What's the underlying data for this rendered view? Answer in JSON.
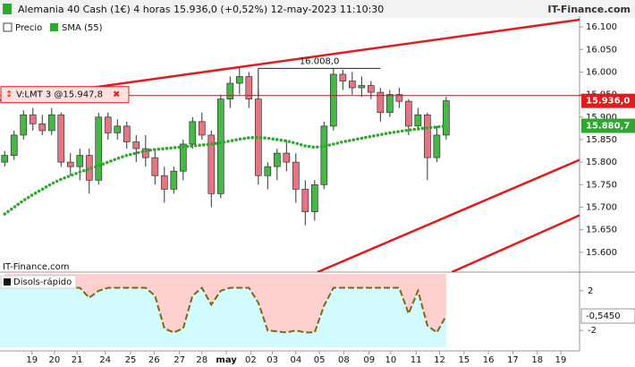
{
  "chart_data": {
    "type": "candlestick",
    "title": "Alemania 40 Cash (1€) 4 horas 15.936,0 (+0,52%) 12-may-2023 11:10:30",
    "brand": "IT-Finance.com",
    "watermark": "IT-Finance.com",
    "legend": [
      "Precio",
      "SMA (55)"
    ],
    "colors": {
      "up": "#45b845",
      "down": "#e57583",
      "sma": "#2ea82e",
      "trend": "#e31b1b",
      "price_box": "#e31b1b",
      "sma_box": "#2ea82e"
    },
    "ylim": [
      15556,
      16124
    ],
    "yticks": [
      {
        "value": 16100,
        "label": "16.100"
      },
      {
        "value": 16050,
        "label": "16.050"
      },
      {
        "value": 16000,
        "label": "16.000"
      },
      {
        "value": 15950,
        "label": "15.950"
      },
      {
        "value": 15900,
        "label": "15.900"
      },
      {
        "value": 15850,
        "label": "15.850"
      },
      {
        "value": 15800,
        "label": "15.800"
      },
      {
        "value": 15750,
        "label": "15.750"
      },
      {
        "value": 15700,
        "label": "15.700"
      },
      {
        "value": 15650,
        "label": "15.650"
      },
      {
        "value": 15600,
        "label": "15.600"
      }
    ],
    "xlim": [
      -0.5,
      61.2
    ],
    "xticks": [
      {
        "value": 2.9,
        "label": "19"
      },
      {
        "value": 5.3,
        "label": "20"
      },
      {
        "value": 7.7,
        "label": "21"
      },
      {
        "value": 10.7,
        "label": "24"
      },
      {
        "value": 13.4,
        "label": "25"
      },
      {
        "value": 15.9,
        "label": "26"
      },
      {
        "value": 18.6,
        "label": "27"
      },
      {
        "value": 21,
        "label": "28"
      },
      {
        "value": 23.6,
        "label": "may"
      },
      {
        "value": 26.2,
        "label": "02"
      },
      {
        "value": 28.5,
        "label": "03"
      },
      {
        "value": 31,
        "label": "04"
      },
      {
        "value": 33.5,
        "label": "05"
      },
      {
        "value": 36.1,
        "label": "08"
      },
      {
        "value": 38.8,
        "label": "09"
      },
      {
        "value": 41.1,
        "label": "10"
      },
      {
        "value": 43.8,
        "label": "11"
      },
      {
        "value": 46.3,
        "label": "12"
      },
      {
        "value": 48.9,
        "label": "15"
      },
      {
        "value": 51.5,
        "label": "16"
      },
      {
        "value": 54.1,
        "label": "17"
      },
      {
        "value": 56.7,
        "label": "18"
      },
      {
        "value": 59.2,
        "label": "19"
      }
    ],
    "ohlc": [
      [
        15800,
        15825,
        15790,
        15815
      ],
      [
        15815,
        15870,
        15805,
        15860
      ],
      [
        15860,
        15915,
        15850,
        15905
      ],
      [
        15905,
        15920,
        15870,
        15885
      ],
      [
        15885,
        15905,
        15860,
        15870
      ],
      [
        15870,
        15920,
        15860,
        15905
      ],
      [
        15905,
        15910,
        15790,
        15800
      ],
      [
        15800,
        15820,
        15770,
        15790
      ],
      [
        15790,
        15830,
        15760,
        15815
      ],
      [
        15815,
        15830,
        15730,
        15760
      ],
      [
        15760,
        15910,
        15750,
        15900
      ],
      [
        15900,
        15910,
        15850,
        15865
      ],
      [
        15865,
        15895,
        15850,
        15880
      ],
      [
        15880,
        15890,
        15830,
        15845
      ],
      [
        15845,
        15860,
        15800,
        15830
      ],
      [
        15830,
        15860,
        15790,
        15810
      ],
      [
        15810,
        15830,
        15750,
        15770
      ],
      [
        15770,
        15790,
        15710,
        15740
      ],
      [
        15740,
        15790,
        15730,
        15780
      ],
      [
        15780,
        15850,
        15760,
        15840
      ],
      [
        15840,
        15900,
        15830,
        15890
      ],
      [
        15890,
        15910,
        15850,
        15860
      ],
      [
        15860,
        15870,
        15700,
        15730
      ],
      [
        15730,
        15950,
        15720,
        15940
      ],
      [
        15940,
        15990,
        15920,
        15975
      ],
      [
        15975,
        16010,
        15950,
        15990
      ],
      [
        15990,
        16000,
        15920,
        15940
      ],
      [
        15940,
        15960,
        15750,
        15770
      ],
      [
        15770,
        15800,
        15740,
        15790
      ],
      [
        15790,
        15830,
        15760,
        15820
      ],
      [
        15820,
        15850,
        15780,
        15800
      ],
      [
        15800,
        15820,
        15710,
        15740
      ],
      [
        15740,
        15760,
        15660,
        15690
      ],
      [
        15690,
        15760,
        15670,
        15750
      ],
      [
        15750,
        15890,
        15740,
        15880
      ],
      [
        15880,
        16008,
        15870,
        15995
      ],
      [
        15995,
        16005,
        15960,
        15980
      ],
      [
        15980,
        16000,
        15950,
        15965
      ],
      [
        15965,
        15990,
        15945,
        15970
      ],
      [
        15970,
        15980,
        15940,
        15955
      ],
      [
        15955,
        15965,
        15890,
        15910
      ],
      [
        15910,
        15960,
        15900,
        15950
      ],
      [
        15950,
        15965,
        15920,
        15935
      ],
      [
        15935,
        15940,
        15860,
        15880
      ],
      [
        15880,
        15920,
        15870,
        15905
      ],
      [
        15905,
        15910,
        15760,
        15810
      ],
      [
        15810,
        15880,
        15800,
        15860
      ],
      [
        15860,
        15945,
        15850,
        15936
      ]
    ],
    "last_price": {
      "value": 15936,
      "label": "15.936,0"
    },
    "sma": {
      "name": "SMA (55)",
      "values": [
        15685,
        15700,
        15715,
        15728,
        15740,
        15752,
        15762,
        15770,
        15778,
        15785,
        15792,
        15800,
        15808,
        15815,
        15820,
        15825,
        15828,
        15830,
        15832,
        15834,
        15836,
        15838,
        15840,
        15843,
        15847,
        15851,
        15854,
        15855,
        15853,
        15850,
        15847,
        15842,
        15836,
        15833,
        15835,
        15840,
        15845,
        15849,
        15853,
        15857,
        15861,
        15865,
        15868,
        15871,
        15874,
        15876,
        15878,
        15880.7
      ],
      "last_label": "15.880,7"
    },
    "order": {
      "label": "V:LMT  3 @15.947,8",
      "value": 15947.8,
      "close": "✖"
    },
    "annotation": {
      "label": "16.008,0",
      "value": 16008,
      "x": [
        27,
        40
      ]
    },
    "trendlines": [
      [
        [
          -0.5,
          15937
        ],
        [
          61.2,
          16116
        ]
      ],
      [
        [
          33.3,
          15556
        ],
        [
          61.2,
          15805
        ]
      ],
      [
        [
          47.6,
          15556
        ],
        [
          61.2,
          15682
        ]
      ]
    ],
    "indicator": {
      "type": "line",
      "name": "Disols-rápido",
      "ylim": [
        -3.7,
        3.7
      ],
      "yticks": [
        2,
        -2
      ],
      "values": [
        2.3,
        2.3,
        2.3,
        2.3,
        2.3,
        2.3,
        2.3,
        2.3,
        2.3,
        1.3,
        2.0,
        2.3,
        2.3,
        2.3,
        2.3,
        2.3,
        1.5,
        -1.8,
        -2.2,
        -1.8,
        1.5,
        2.3,
        0.6,
        2.0,
        2.3,
        2.3,
        2.3,
        0.8,
        -2.0,
        -2.1,
        -2.2,
        -2.0,
        -2.2,
        -2.2,
        0.5,
        2.3,
        2.3,
        2.3,
        2.3,
        2.3,
        2.3,
        2.3,
        2.3,
        -0.3,
        2.0,
        -1.5,
        -2.2,
        -0.545
      ],
      "last_label": "-0,5450",
      "color": "#7a6a10",
      "fill_above": "#ffd0d0",
      "fill_below": "#d2fbff"
    }
  }
}
